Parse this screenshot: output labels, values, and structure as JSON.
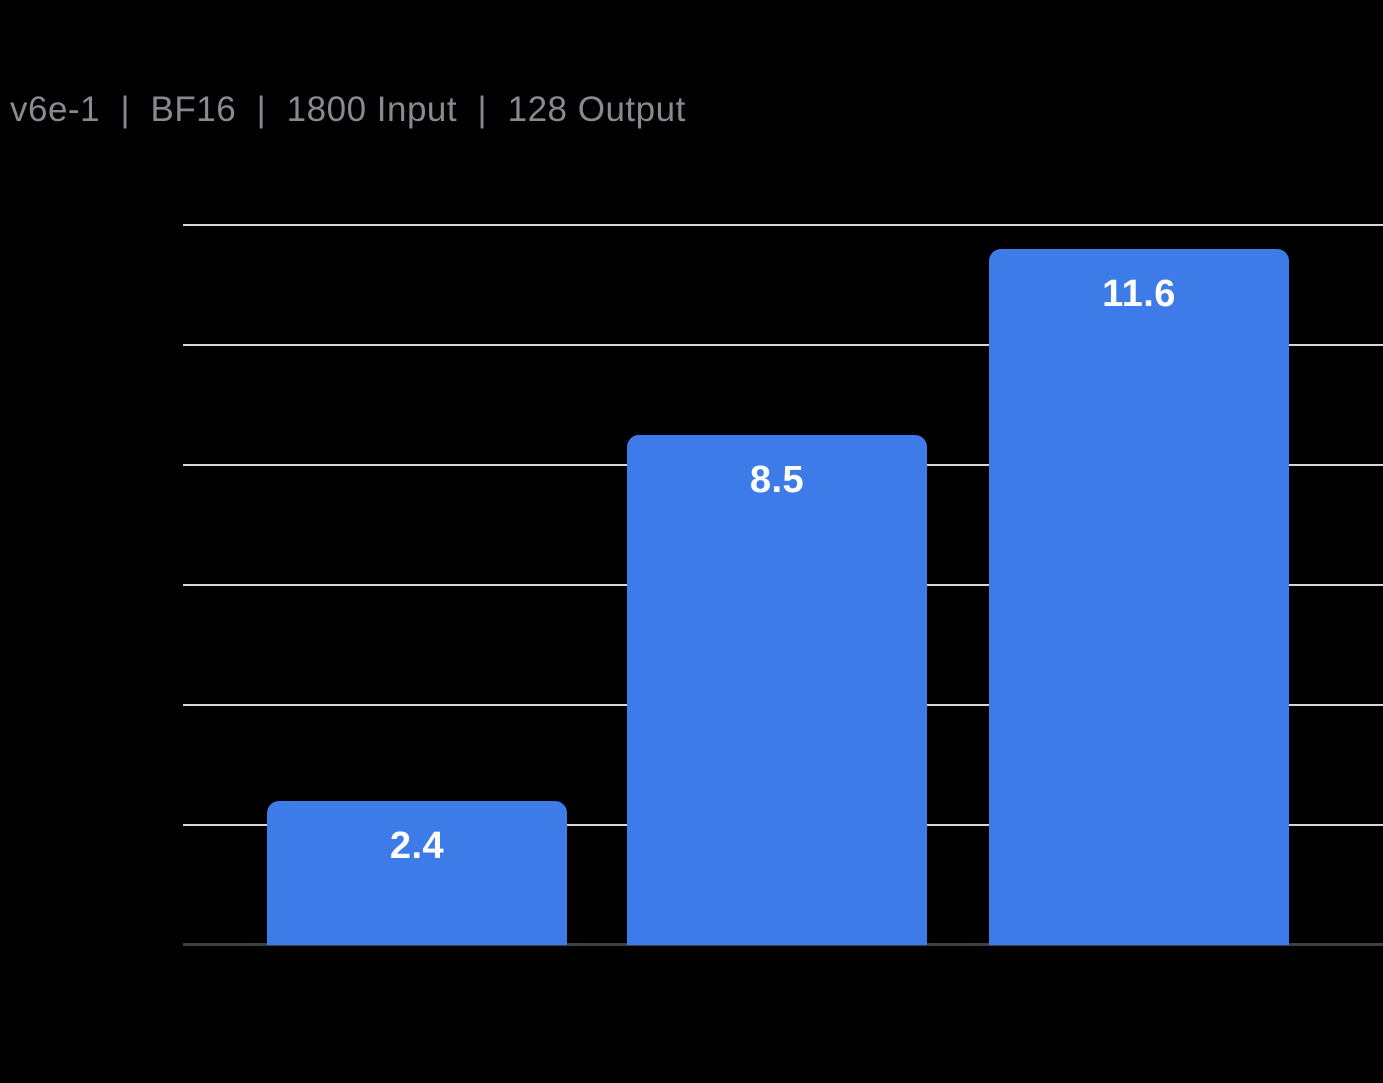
{
  "title": "v6e-1  |  BF16  |  1800 Input  |  128 Output",
  "chart_data": {
    "type": "bar",
    "values": [
      2.4,
      8.5,
      11.6
    ],
    "labels": [
      "2.4",
      "8.5",
      "11.6"
    ],
    "title": "v6e-1  |  BF16  |  1800 Input  |  128 Output",
    "xlabel": "",
    "ylabel": "",
    "ylim": [
      0,
      12
    ],
    "ytick_step": 2,
    "grid": true,
    "legend": false,
    "x_tick_labels_visible": false,
    "y_tick_labels_visible": false,
    "colors": {
      "bar": "#3D7CE8",
      "bar_label": "#FFFFFF",
      "gridline": "#D5D8DD",
      "axis": "#3C4043",
      "title": "#868B91",
      "background": "#000000"
    }
  }
}
